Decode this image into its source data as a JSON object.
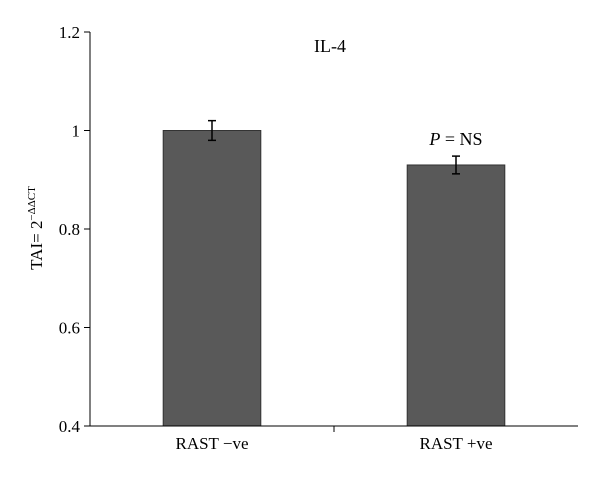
{
  "chart_data": {
    "type": "bar",
    "title": "IL-4",
    "annotation": {
      "italic": "P",
      "text": " = NS"
    },
    "ylabel": {
      "base": "TAI= 2",
      "superscript": "−ΔΔCT"
    },
    "xlabel": "",
    "categories": [
      "RAST −ve",
      "RAST +ve"
    ],
    "values": [
      1.0,
      0.93
    ],
    "errors": [
      0.02,
      0.018
    ],
    "ylim": [
      0.4,
      1.2
    ],
    "yticks": [
      0.4,
      0.6,
      0.8,
      1.0,
      1.2
    ],
    "ytick_labels": [
      "0.4",
      "0.6",
      "0.8",
      "1",
      "1.2"
    ],
    "grid": false,
    "bar_color": "#595959",
    "bar_edge_color": "#333333"
  }
}
